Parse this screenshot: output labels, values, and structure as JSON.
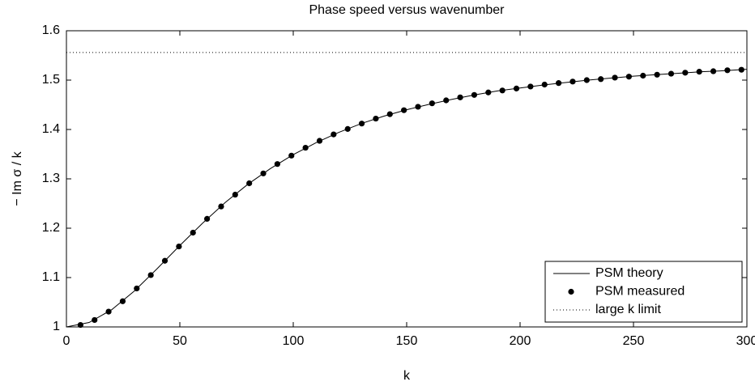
{
  "chart_data": {
    "type": "line",
    "title": "Phase speed versus wavenumber",
    "xlabel": "k",
    "ylabel": "− Im σ / k",
    "xlim": [
      0,
      300
    ],
    "ylim": [
      1,
      1.6
    ],
    "xticks": [
      0,
      50,
      100,
      150,
      200,
      250,
      300
    ],
    "yticks": [
      1,
      1.1,
      1.2,
      1.3,
      1.4,
      1.5,
      1.6
    ],
    "legend": "lower right",
    "series": [
      {
        "name": "PSM theory",
        "color": "#000000",
        "style": "line",
        "x": [
          0,
          10,
          20,
          30,
          40,
          50,
          60,
          70,
          80,
          90,
          100,
          110,
          120,
          130,
          140,
          150,
          160,
          170,
          180,
          190,
          200,
          210,
          220,
          230,
          240,
          250,
          260,
          270,
          280,
          290,
          300
        ],
        "values": [
          1.0,
          1.009,
          1.035,
          1.073,
          1.118,
          1.165,
          1.21,
          1.252,
          1.289,
          1.321,
          1.349,
          1.373,
          1.394,
          1.412,
          1.427,
          1.44,
          1.451,
          1.461,
          1.47,
          1.478,
          1.484,
          1.49,
          1.495,
          1.5,
          1.504,
          1.508,
          1.511,
          1.514,
          1.517,
          1.519,
          1.522
        ]
      },
      {
        "name": "PSM measured",
        "color": "#000000",
        "style": "marker",
        "x": [
          6.2,
          12.4,
          18.6,
          24.8,
          31,
          37.2,
          43.4,
          49.6,
          55.8,
          62,
          68.2,
          74.4,
          80.6,
          86.8,
          93,
          99.2,
          105.4,
          111.6,
          117.8,
          124,
          130.2,
          136.4,
          142.6,
          148.8,
          155,
          161.2,
          167.4,
          173.6,
          179.8,
          186,
          192.2,
          198.4,
          204.6,
          210.8,
          217,
          223.2,
          229.4,
          235.6,
          241.8,
          248,
          254.2,
          260.4,
          266.6,
          272.8,
          279,
          285.2,
          291.4,
          297.6
        ],
        "values": [
          1.004,
          1.014,
          1.031,
          1.052,
          1.078,
          1.105,
          1.134,
          1.163,
          1.191,
          1.219,
          1.244,
          1.268,
          1.291,
          1.311,
          1.33,
          1.347,
          1.363,
          1.377,
          1.39,
          1.401,
          1.412,
          1.422,
          1.431,
          1.439,
          1.446,
          1.453,
          1.459,
          1.465,
          1.47,
          1.475,
          1.479,
          1.483,
          1.487,
          1.491,
          1.494,
          1.497,
          1.5,
          1.502,
          1.505,
          1.507,
          1.509,
          1.511,
          1.513,
          1.515,
          1.517,
          1.518,
          1.52,
          1.521
        ]
      },
      {
        "name": "large k limit",
        "color": "#000000",
        "style": "dotted",
        "x": [
          0,
          300
        ],
        "values": [
          1.556,
          1.556
        ]
      }
    ]
  }
}
